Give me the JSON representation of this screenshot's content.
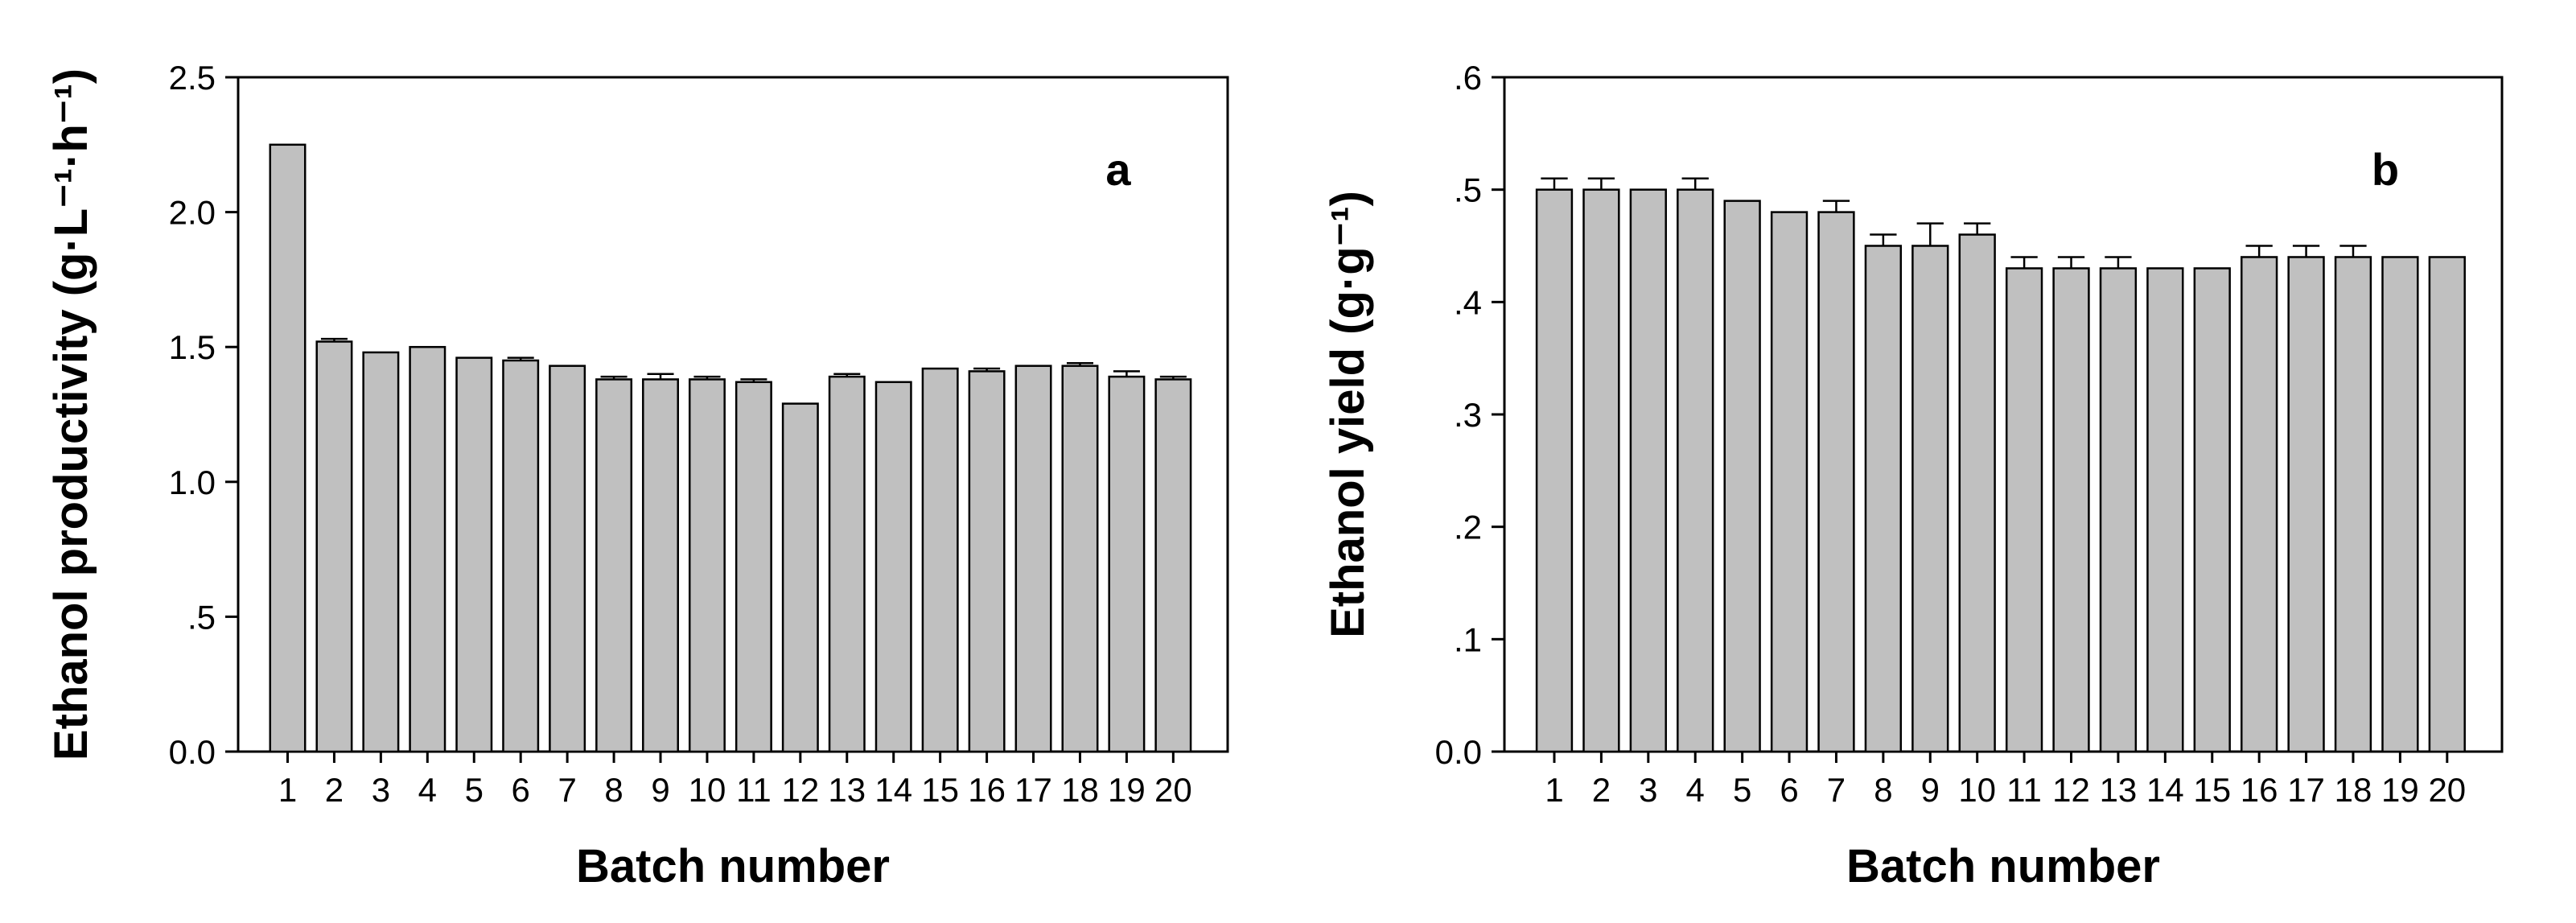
{
  "chart_data": [
    {
      "type": "bar",
      "panel_label": "a",
      "xlabel": "Batch number",
      "ylabel": "Ethanol productivity (g·L⁻¹·h⁻¹)",
      "ylim": [
        0,
        2.5
      ],
      "yticks": [
        "0.0",
        ".5",
        "1.0",
        "1.5",
        "2.0",
        "2.5"
      ],
      "ytick_values": [
        0,
        0.5,
        1.0,
        1.5,
        2.0,
        2.5
      ],
      "categories": [
        "1",
        "2",
        "3",
        "4",
        "5",
        "6",
        "7",
        "8",
        "9",
        "10",
        "11",
        "12",
        "13",
        "14",
        "15",
        "16",
        "17",
        "18",
        "19",
        "20"
      ],
      "values": [
        2.25,
        1.52,
        1.48,
        1.5,
        1.46,
        1.45,
        1.43,
        1.38,
        1.38,
        1.38,
        1.37,
        1.29,
        1.39,
        1.37,
        1.42,
        1.41,
        1.43,
        1.43,
        1.39,
        1.38
      ],
      "errors": [
        0,
        0.01,
        0,
        0,
        0,
        0.01,
        0,
        0.01,
        0.02,
        0.01,
        0.01,
        0,
        0.01,
        0,
        0,
        0.01,
        0,
        0.01,
        0.02,
        0.01
      ],
      "bar_color": "#c0c0c0",
      "grid": false
    },
    {
      "type": "bar",
      "panel_label": "b",
      "xlabel": "Batch number",
      "ylabel": "Ethanol yield (g·g⁻¹)",
      "ylim": [
        0,
        0.6
      ],
      "yticks": [
        "0.0",
        ".1",
        ".2",
        ".3",
        ".4",
        ".5",
        ".6"
      ],
      "ytick_values": [
        0,
        0.1,
        0.2,
        0.3,
        0.4,
        0.5,
        0.6
      ],
      "categories": [
        "1",
        "2",
        "3",
        "4",
        "5",
        "6",
        "7",
        "8",
        "9",
        "10",
        "11",
        "12",
        "13",
        "14",
        "15",
        "16",
        "17",
        "18",
        "19",
        "20"
      ],
      "values": [
        0.5,
        0.5,
        0.5,
        0.5,
        0.49,
        0.48,
        0.48,
        0.45,
        0.45,
        0.46,
        0.43,
        0.43,
        0.43,
        0.43,
        0.43,
        0.44,
        0.44,
        0.44,
        0.44,
        0.44
      ],
      "errors": [
        0.01,
        0.01,
        0,
        0.01,
        0,
        0,
        0.01,
        0.01,
        0.02,
        0.01,
        0.01,
        0.01,
        0.01,
        0,
        0,
        0.01,
        0.01,
        0.01,
        0,
        0
      ],
      "bar_color": "#c0c0c0",
      "grid": false
    }
  ]
}
